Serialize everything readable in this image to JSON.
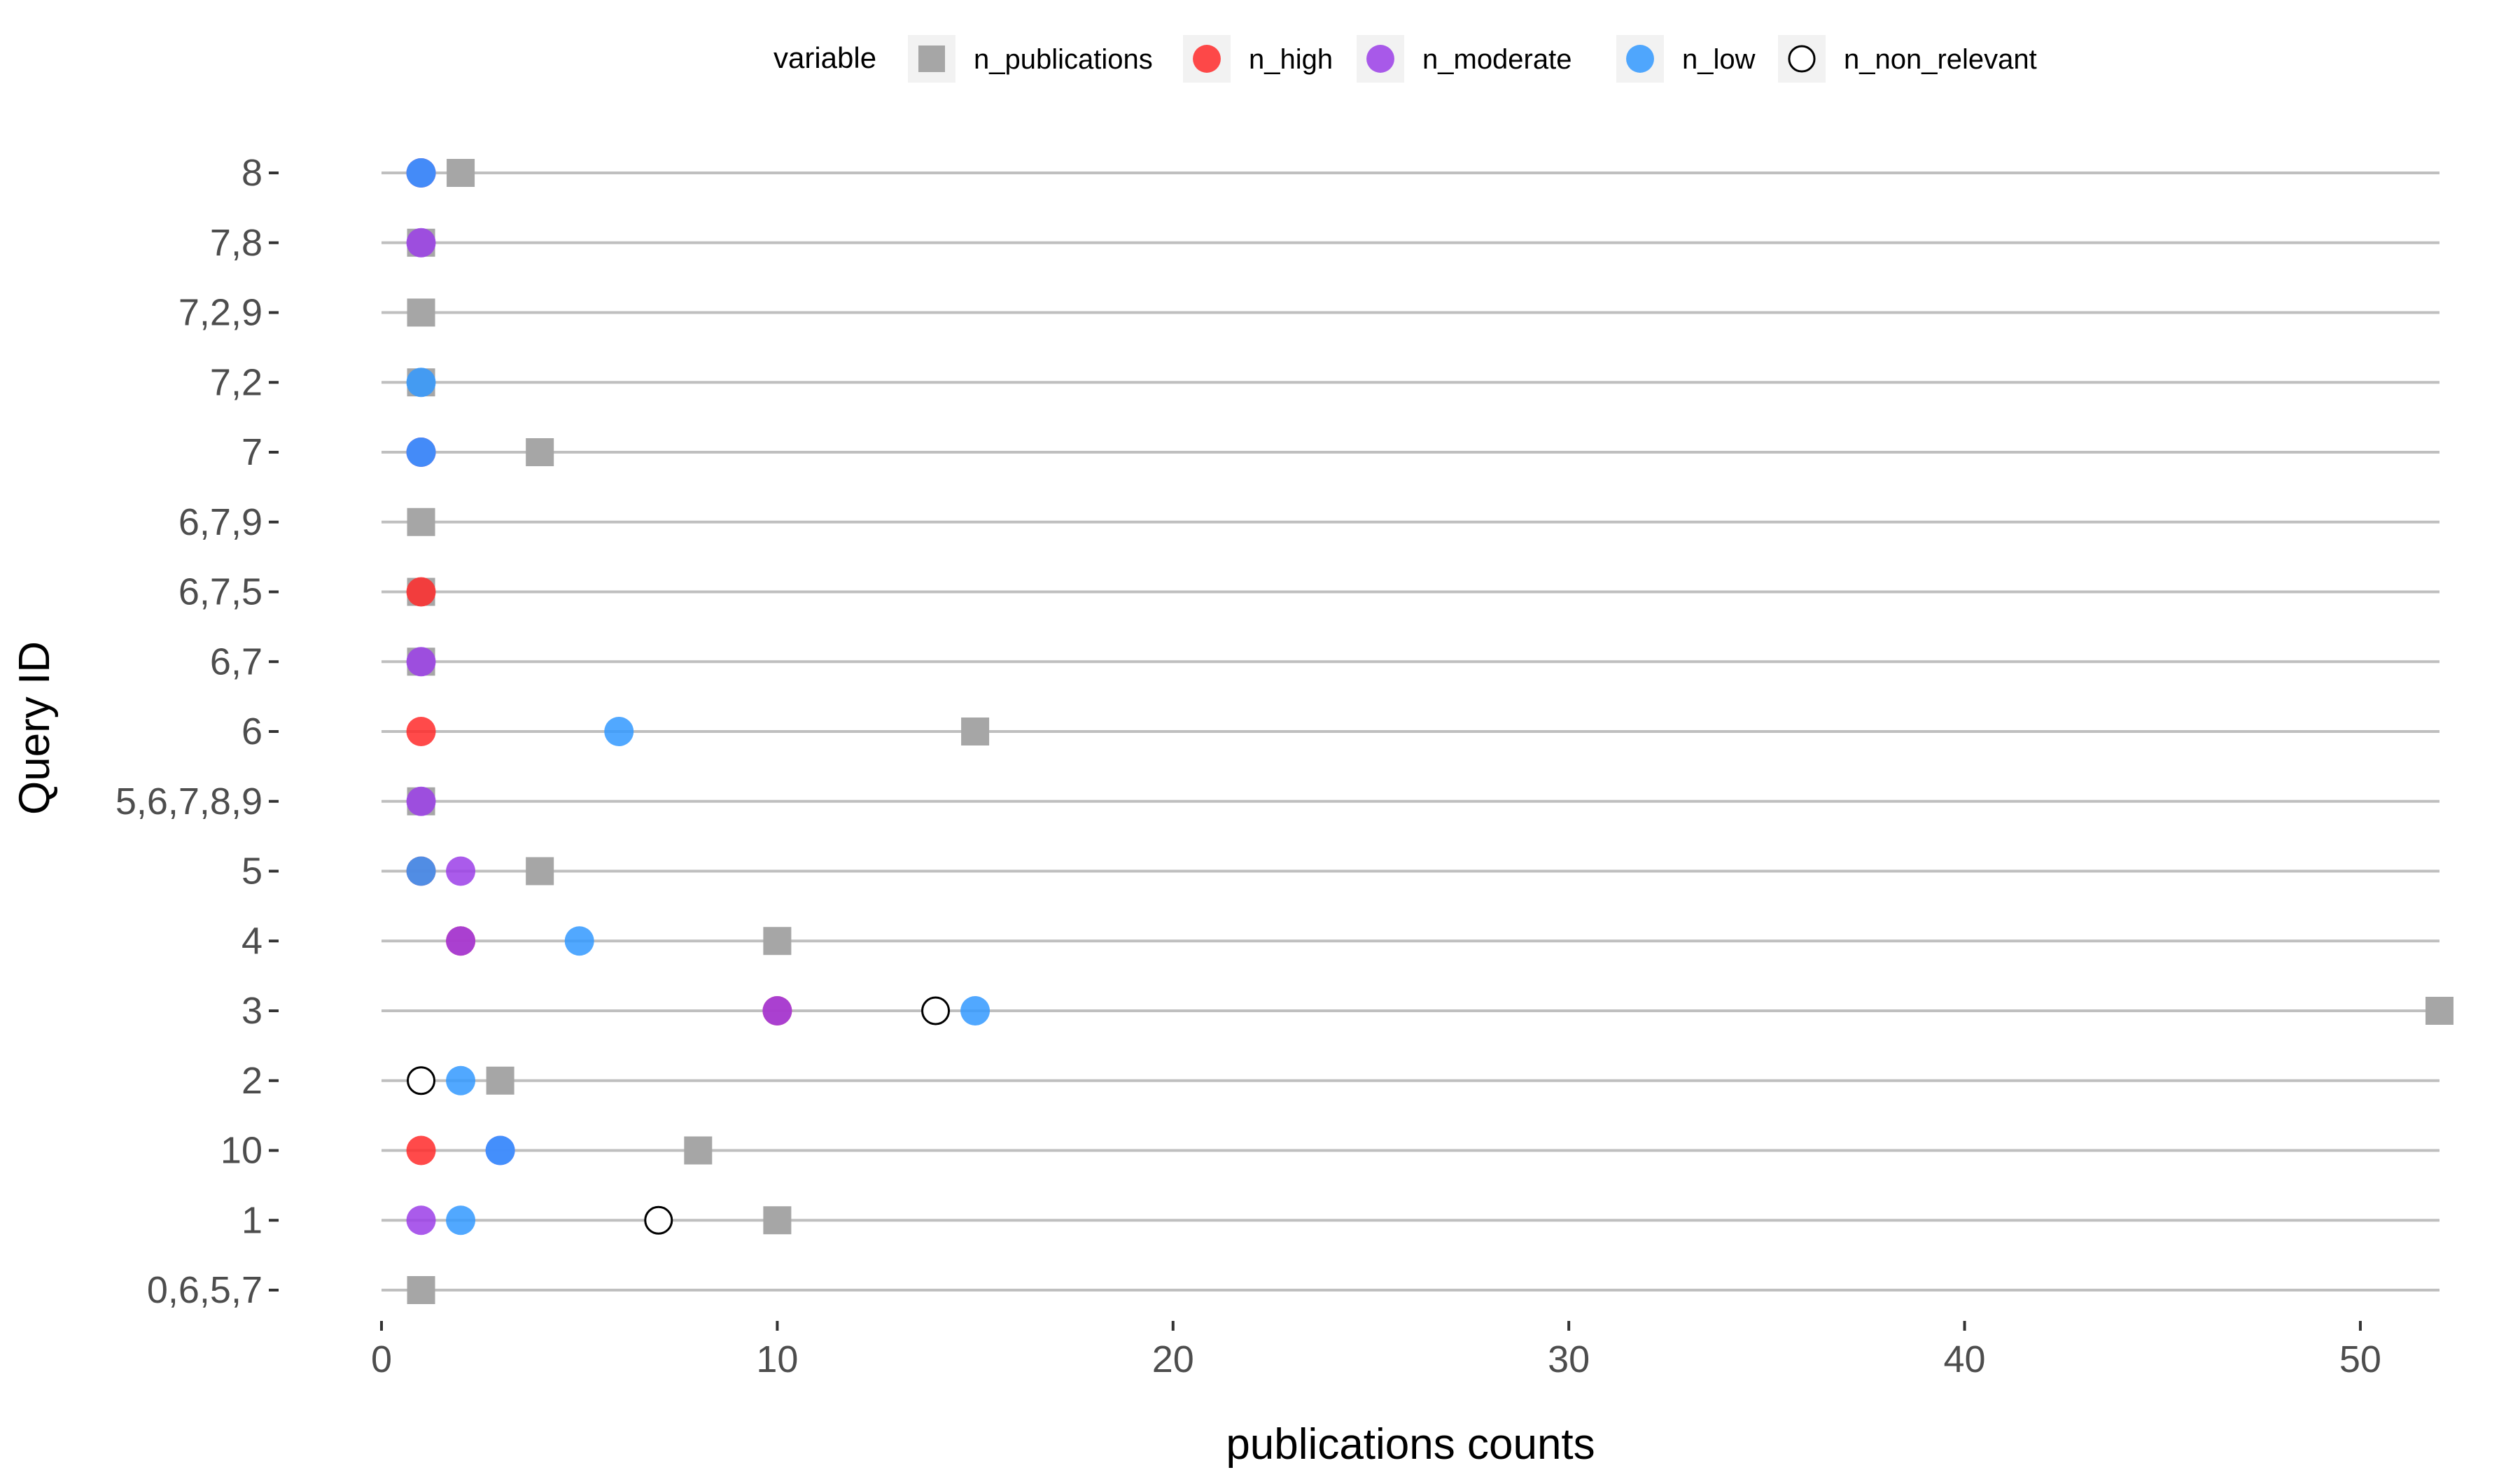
{
  "chart_data": {
    "type": "scatter",
    "title": "",
    "xlabel": "publications counts",
    "ylabel": "Query ID",
    "xlim": [
      0,
      52
    ],
    "x_ticks": [
      0,
      10,
      20,
      30,
      40,
      50
    ],
    "categories": [
      "0,6,5,7",
      "1",
      "10",
      "2",
      "3",
      "4",
      "5",
      "5,6,7,8,9",
      "6",
      "6,7",
      "6,7,5",
      "6,7,9",
      "7",
      "7,2",
      "7,2,9",
      "7,8",
      "8"
    ],
    "grid": "horizontal lines at categories",
    "legend": {
      "title": "variable",
      "position": "top",
      "entries": [
        "n_publications",
        "n_high",
        "n_moderate",
        "n_low",
        "n_non_relevant"
      ]
    },
    "series": [
      {
        "name": "n_publications",
        "marker": "square",
        "color": "#a6a6a6",
        "points": [
          {
            "y": "8",
            "x": 2
          },
          {
            "y": "7,8",
            "x": 1
          },
          {
            "y": "7,2,9",
            "x": 1
          },
          {
            "y": "7,2",
            "x": 1
          },
          {
            "y": "7",
            "x": 4
          },
          {
            "y": "6,7,9",
            "x": 1
          },
          {
            "y": "6,7,5",
            "x": 1
          },
          {
            "y": "6,7",
            "x": 1
          },
          {
            "y": "6",
            "x": 15
          },
          {
            "y": "5,6,7,8,9",
            "x": 1
          },
          {
            "y": "5",
            "x": 4
          },
          {
            "y": "4",
            "x": 10
          },
          {
            "y": "3",
            "x": 52
          },
          {
            "y": "2",
            "x": 3
          },
          {
            "y": "10",
            "x": 8
          },
          {
            "y": "1",
            "x": 10
          },
          {
            "y": "0,6,5,7",
            "x": 1
          }
        ]
      },
      {
        "name": "n_high",
        "marker": "circle",
        "color": "#ff2a2a",
        "points": [
          {
            "y": "8",
            "x": 1
          },
          {
            "y": "7",
            "x": 1
          },
          {
            "y": "6,7,5",
            "x": 1
          },
          {
            "y": "6",
            "x": 1
          },
          {
            "y": "5",
            "x": 1
          },
          {
            "y": "4",
            "x": 2
          },
          {
            "y": "3",
            "x": 10
          },
          {
            "y": "10",
            "x": 1
          }
        ]
      },
      {
        "name": "n_moderate",
        "marker": "circle",
        "color": "#9b3ee8",
        "points": [
          {
            "y": "8",
            "x": 1
          },
          {
            "y": "7,8",
            "x": 1
          },
          {
            "y": "7",
            "x": 1
          },
          {
            "y": "6,7",
            "x": 1
          },
          {
            "y": "5,6,7,8,9",
            "x": 1
          },
          {
            "y": "5",
            "x": 2
          },
          {
            "y": "4",
            "x": 2
          },
          {
            "y": "3",
            "x": 10
          },
          {
            "y": "10",
            "x": 3
          },
          {
            "y": "1",
            "x": 1
          }
        ]
      },
      {
        "name": "n_low",
        "marker": "circle",
        "color": "#3399ff",
        "points": [
          {
            "y": "8",
            "x": 1
          },
          {
            "y": "7,2",
            "x": 1
          },
          {
            "y": "7",
            "x": 1
          },
          {
            "y": "6",
            "x": 6
          },
          {
            "y": "5",
            "x": 1
          },
          {
            "y": "4",
            "x": 5
          },
          {
            "y": "3",
            "x": 15
          },
          {
            "y": "2",
            "x": 2
          },
          {
            "y": "10",
            "x": 3
          },
          {
            "y": "1",
            "x": 2
          }
        ]
      },
      {
        "name": "n_non_relevant",
        "marker": "open-circle",
        "color": "#000000",
        "points": [
          {
            "y": "3",
            "x": 14
          },
          {
            "y": "2",
            "x": 1
          },
          {
            "y": "1",
            "x": 7
          }
        ]
      }
    ]
  }
}
